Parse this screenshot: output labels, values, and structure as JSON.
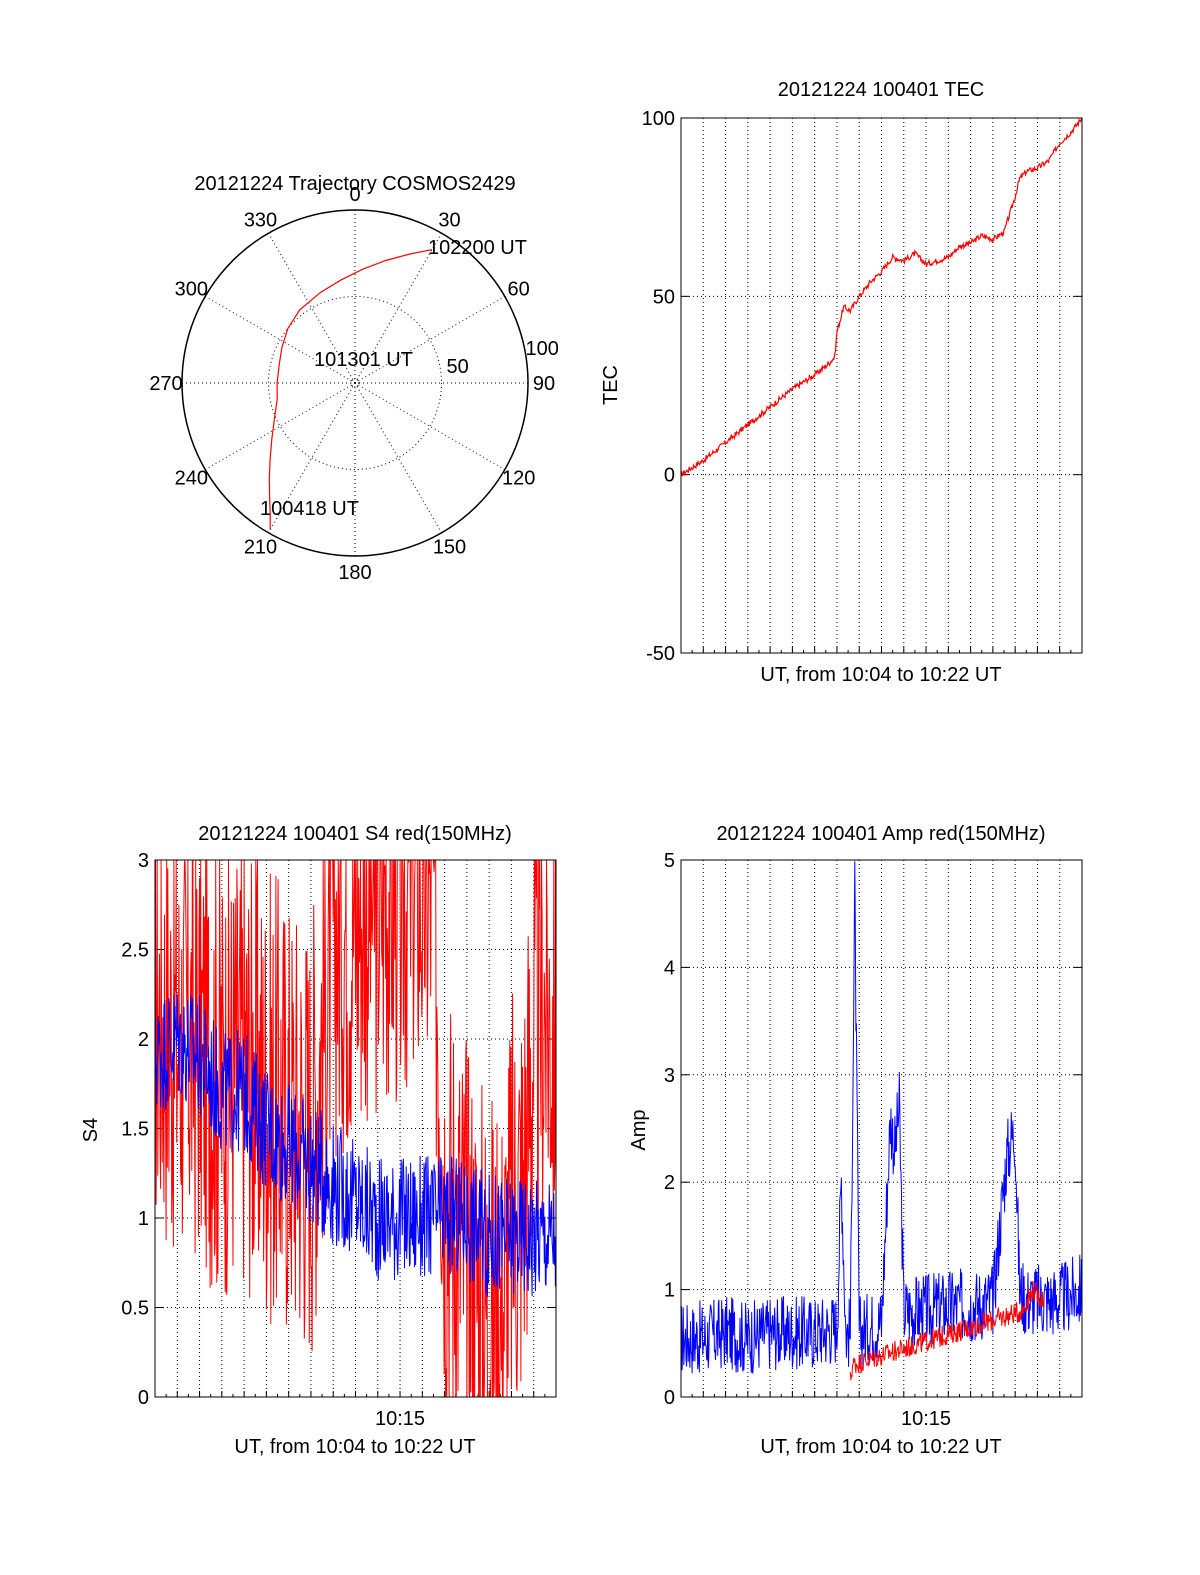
{
  "colors": {
    "red": "#ff0000",
    "blue": "#0000ff",
    "axis": "#000000",
    "grid": "#000000",
    "background": "#ffffff"
  },
  "chart_data": [
    {
      "type": "polar",
      "title": "20121224 Trajectory COSMOS2429",
      "angle_ticks": [
        "0",
        "30",
        "60",
        "90",
        "120",
        "150",
        "180",
        "210",
        "240",
        "270",
        "300",
        "330"
      ],
      "radial_ticks": [
        "50",
        "100"
      ],
      "radial_range": [
        0,
        100
      ],
      "angle_direction": "clockwise, 0 at top",
      "grid": true,
      "series": [
        {
          "color": "#ff0000",
          "points_az_r": [
            [
              210,
              98
            ],
            [
              213,
              90
            ],
            [
              217,
              82
            ],
            [
              222,
              74
            ],
            [
              228,
              66
            ],
            [
              236,
              58
            ],
            [
              246,
              51
            ],
            [
              258,
              46
            ],
            [
              270,
              45
            ],
            [
              283,
              45
            ],
            [
              296,
              47
            ],
            [
              309,
              50
            ],
            [
              323,
              53
            ],
            [
              339,
              56
            ],
            [
              352,
              60
            ],
            [
              4,
              66
            ],
            [
              14,
              73
            ],
            [
              23,
              81
            ],
            [
              30,
              89
            ]
          ]
        }
      ],
      "annotations": [
        "102200 UT",
        "101301 UT",
        "100418 UT"
      ]
    },
    {
      "type": "line",
      "title": "20121224 100401 TEC",
      "xlabel": "UT, from 10:04 to 10:22 UT",
      "ylabel": "TEC",
      "xlim": [
        "10:04",
        "10:22"
      ],
      "ylim": [
        -50,
        100
      ],
      "yticks": [
        "-50",
        "0",
        "50",
        "100"
      ],
      "grid": true,
      "series": [
        {
          "color": "#ff0000",
          "x_min": [
            0,
            1,
            2,
            3,
            4,
            5,
            6,
            6.6,
            6.9,
            7,
            7.3,
            7.6,
            8,
            8.5,
            9,
            9.5,
            10,
            10.5,
            11,
            11.5,
            12,
            12.5,
            13,
            13.5,
            14,
            14.5,
            15,
            15.2,
            15.5,
            16,
            16.5,
            17,
            17.5,
            18
          ],
          "y": [
            0,
            4,
            9,
            14,
            19,
            24,
            28,
            31,
            33,
            40,
            47,
            46,
            50,
            54,
            57,
            61,
            60,
            62,
            59,
            60,
            61,
            64,
            65,
            67,
            66,
            68,
            78,
            83,
            85,
            86,
            88,
            93,
            96,
            100
          ]
        }
      ]
    },
    {
      "type": "line",
      "title": "20121224 100401 S4 red(150MHz)",
      "xlabel": "UT, from 10:04 to 10:22 UT",
      "ylabel": "S4",
      "xlim": [
        "10:04",
        "10:22"
      ],
      "ylim": [
        0,
        3
      ],
      "yticks": [
        "0",
        "0.5",
        "1",
        "1.5",
        "2",
        "2.5",
        "3"
      ],
      "xticks": [
        "10:15"
      ],
      "grid": true,
      "series": [
        {
          "color": "#ff0000",
          "x_min": [
            0,
            1,
            2,
            3,
            4,
            5,
            6,
            7,
            8,
            9,
            9.5,
            10,
            10.5,
            11,
            11.5,
            12,
            12.5,
            13,
            13.5,
            14,
            14.5,
            15,
            15.5,
            16,
            16.5,
            17,
            17.5,
            18
          ],
          "y": [
            2.2,
            2.0,
            2.0,
            1.8,
            1.9,
            1.7,
            1.6,
            1.5,
            2.6,
            2.7,
            2.8,
            2.8,
            2.9,
            2.8,
            3.0,
            2.9,
            2.9,
            1.2,
            1.0,
            0.8,
            0.6,
            0.5,
            0.4,
            1.0,
            1.2,
            2.0,
            2.2,
            2.0
          ]
        },
        {
          "color": "#0000ff",
          "x_min": [
            0,
            1,
            2,
            3,
            4,
            5,
            6,
            7,
            8,
            9,
            10,
            11,
            12,
            13,
            14,
            15,
            16,
            17,
            18
          ],
          "y": [
            1.9,
            2.0,
            1.9,
            1.7,
            1.7,
            1.5,
            1.4,
            1.3,
            1.2,
            1.1,
            1.0,
            1.0,
            1.0,
            1.0,
            1.0,
            0.9,
            0.9,
            0.9,
            0.9
          ]
        }
      ]
    },
    {
      "type": "line",
      "title": "20121224 100401 Amp red(150MHz)",
      "xlabel": "UT, from 10:04 to 10:22 UT",
      "ylabel": "Amp",
      "xlim": [
        "10:04",
        "10:22"
      ],
      "ylim": [
        0,
        5
      ],
      "yticks": [
        "0",
        "1",
        "2",
        "3",
        "4",
        "5"
      ],
      "xticks": [
        "10:15"
      ],
      "grid": true,
      "series": [
        {
          "color": "#0000ff",
          "x_min": [
            0,
            1,
            2,
            3,
            4,
            5,
            6,
            7,
            7.2,
            7.4,
            7.6,
            7.8,
            8,
            9,
            9.4,
            9.6,
            9.8,
            10,
            11,
            12,
            13,
            14,
            14.6,
            14.8,
            15,
            15.2,
            15.5,
            16,
            17,
            18
          ],
          "y": [
            0.55,
            0.55,
            0.6,
            0.55,
            0.6,
            0.6,
            0.6,
            0.65,
            2.05,
            0.6,
            0.6,
            4.7,
            0.6,
            0.7,
            2.6,
            2.3,
            2.7,
            0.8,
            0.8,
            0.85,
            0.85,
            0.9,
            2.2,
            2.4,
            2.45,
            1.0,
            0.9,
            0.9,
            0.9,
            1.0
          ]
        },
        {
          "color": "#ff0000",
          "x_min": [
            7.6,
            7.7,
            15.3,
            15.8,
            16.3
          ],
          "y": [
            0.15,
            0.3,
            0.8,
            1.0,
            0.9
          ]
        }
      ]
    }
  ]
}
